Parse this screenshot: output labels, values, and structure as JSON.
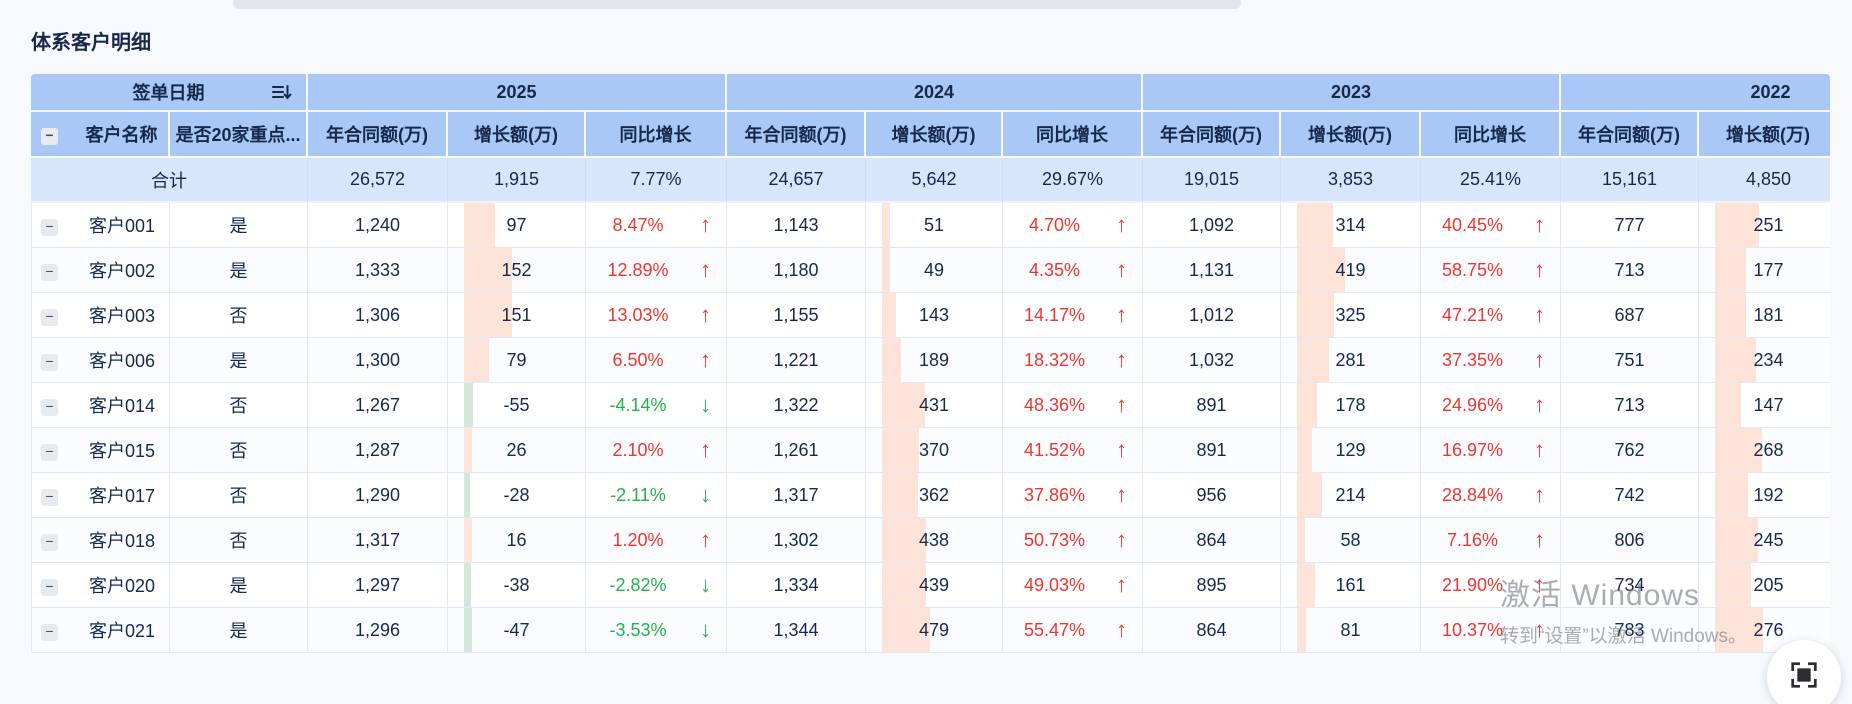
{
  "page": {
    "title": "体系客户明细"
  },
  "colors": {
    "page_bg": "#f7f9fd",
    "header_bg": "#a9c8f6",
    "total_bg": "#d8e6fb",
    "grid": "#dfe9f8",
    "text": "#16294d",
    "red": "#f0352c",
    "green": "#22b24c",
    "bar_pink": "#fde3d8",
    "bar_green": "#d3e7db"
  },
  "icons": {
    "sort_icon": "sort-descending",
    "collapse_glyph": "−",
    "up_arrow": "↑",
    "down_arrow": "↓",
    "fullscreen_icon": "fullscreen"
  },
  "table": {
    "group_header": {
      "date_label": "签单日期",
      "years": [
        "2025",
        "2024",
        "2023",
        "2022"
      ]
    },
    "sub_headers": {
      "customer": "客户名称",
      "key20": "是否20家重点...",
      "amount": "年合同额(万)",
      "growth": "增长额(万)",
      "yoy": "同比增长"
    },
    "total": {
      "label": "合计",
      "years": [
        {
          "amount": "26,572",
          "growth": "1,915",
          "yoy": "7.77%"
        },
        {
          "amount": "24,657",
          "growth": "5,642",
          "yoy": "29.67%"
        },
        {
          "amount": "19,015",
          "growth": "3,853",
          "yoy": "25.41%"
        },
        {
          "amount": "15,161",
          "growth": "4,850"
        }
      ]
    },
    "rows": [
      {
        "name": "客户001",
        "key20": "是",
        "years": [
          {
            "amount": "1,240",
            "growth": 97,
            "yoy": "8.47%",
            "dir": "up"
          },
          {
            "amount": "1,143",
            "growth": 51,
            "yoy": "4.70%",
            "dir": "up"
          },
          {
            "amount": "1,092",
            "growth": 314,
            "yoy": "40.45%",
            "dir": "up"
          },
          {
            "amount": "777",
            "growth": 251
          }
        ]
      },
      {
        "name": "客户002",
        "key20": "是",
        "years": [
          {
            "amount": "1,333",
            "growth": 152,
            "yoy": "12.89%",
            "dir": "up"
          },
          {
            "amount": "1,180",
            "growth": 49,
            "yoy": "4.35%",
            "dir": "up"
          },
          {
            "amount": "1,131",
            "growth": 419,
            "yoy": "58.75%",
            "dir": "up"
          },
          {
            "amount": "713",
            "growth": 177
          }
        ]
      },
      {
        "name": "客户003",
        "key20": "否",
        "years": [
          {
            "amount": "1,306",
            "growth": 151,
            "yoy": "13.03%",
            "dir": "up"
          },
          {
            "amount": "1,155",
            "growth": 143,
            "yoy": "14.17%",
            "dir": "up"
          },
          {
            "amount": "1,012",
            "growth": 325,
            "yoy": "47.21%",
            "dir": "up"
          },
          {
            "amount": "687",
            "growth": 181
          }
        ]
      },
      {
        "name": "客户006",
        "key20": "是",
        "years": [
          {
            "amount": "1,300",
            "growth": 79,
            "yoy": "6.50%",
            "dir": "up"
          },
          {
            "amount": "1,221",
            "growth": 189,
            "yoy": "18.32%",
            "dir": "up"
          },
          {
            "amount": "1,032",
            "growth": 281,
            "yoy": "37.35%",
            "dir": "up"
          },
          {
            "amount": "751",
            "growth": 234
          }
        ]
      },
      {
        "name": "客户014",
        "key20": "否",
        "years": [
          {
            "amount": "1,267",
            "growth": -55,
            "yoy": "-4.14%",
            "dir": "down"
          },
          {
            "amount": "1,322",
            "growth": 431,
            "yoy": "48.36%",
            "dir": "up"
          },
          {
            "amount": "891",
            "growth": 178,
            "yoy": "24.96%",
            "dir": "up"
          },
          {
            "amount": "713",
            "growth": 147
          }
        ]
      },
      {
        "name": "客户015",
        "key20": "否",
        "years": [
          {
            "amount": "1,287",
            "growth": 26,
            "yoy": "2.10%",
            "dir": "up"
          },
          {
            "amount": "1,261",
            "growth": 370,
            "yoy": "41.52%",
            "dir": "up"
          },
          {
            "amount": "891",
            "growth": 129,
            "yoy": "16.97%",
            "dir": "up"
          },
          {
            "amount": "762",
            "growth": 268
          }
        ]
      },
      {
        "name": "客户017",
        "key20": "否",
        "years": [
          {
            "amount": "1,290",
            "growth": -28,
            "yoy": "-2.11%",
            "dir": "down"
          },
          {
            "amount": "1,317",
            "growth": 362,
            "yoy": "37.86%",
            "dir": "up"
          },
          {
            "amount": "956",
            "growth": 214,
            "yoy": "28.84%",
            "dir": "up"
          },
          {
            "amount": "742",
            "growth": 192
          }
        ]
      },
      {
        "name": "客户018",
        "key20": "否",
        "years": [
          {
            "amount": "1,317",
            "growth": 16,
            "yoy": "1.20%",
            "dir": "up"
          },
          {
            "amount": "1,302",
            "growth": 438,
            "yoy": "50.73%",
            "dir": "up"
          },
          {
            "amount": "864",
            "growth": 58,
            "yoy": "7.16%",
            "dir": "up"
          },
          {
            "amount": "806",
            "growth": 245
          }
        ]
      },
      {
        "name": "客户020",
        "key20": "是",
        "years": [
          {
            "amount": "1,297",
            "growth": -38,
            "yoy": "-2.82%",
            "dir": "down"
          },
          {
            "amount": "1,334",
            "growth": 439,
            "yoy": "49.03%",
            "dir": "up"
          },
          {
            "amount": "895",
            "growth": 161,
            "yoy": "21.90%",
            "dir": "up"
          },
          {
            "amount": "734",
            "growth": 205
          }
        ]
      },
      {
        "name": "客户021",
        "key20": "是",
        "years": [
          {
            "amount": "1,296",
            "growth": -47,
            "yoy": "-3.53%",
            "dir": "down"
          },
          {
            "amount": "1,344",
            "growth": 479,
            "yoy": "55.47%",
            "dir": "up"
          },
          {
            "amount": "864",
            "growth": 81,
            "yoy": "10.37%",
            "dir": "up"
          },
          {
            "amount": "783",
            "growth": 276
          }
        ]
      }
    ]
  },
  "watermark": {
    "line1": "激活 Windows",
    "line2": "转到“设置”以激活 Windows。"
  }
}
